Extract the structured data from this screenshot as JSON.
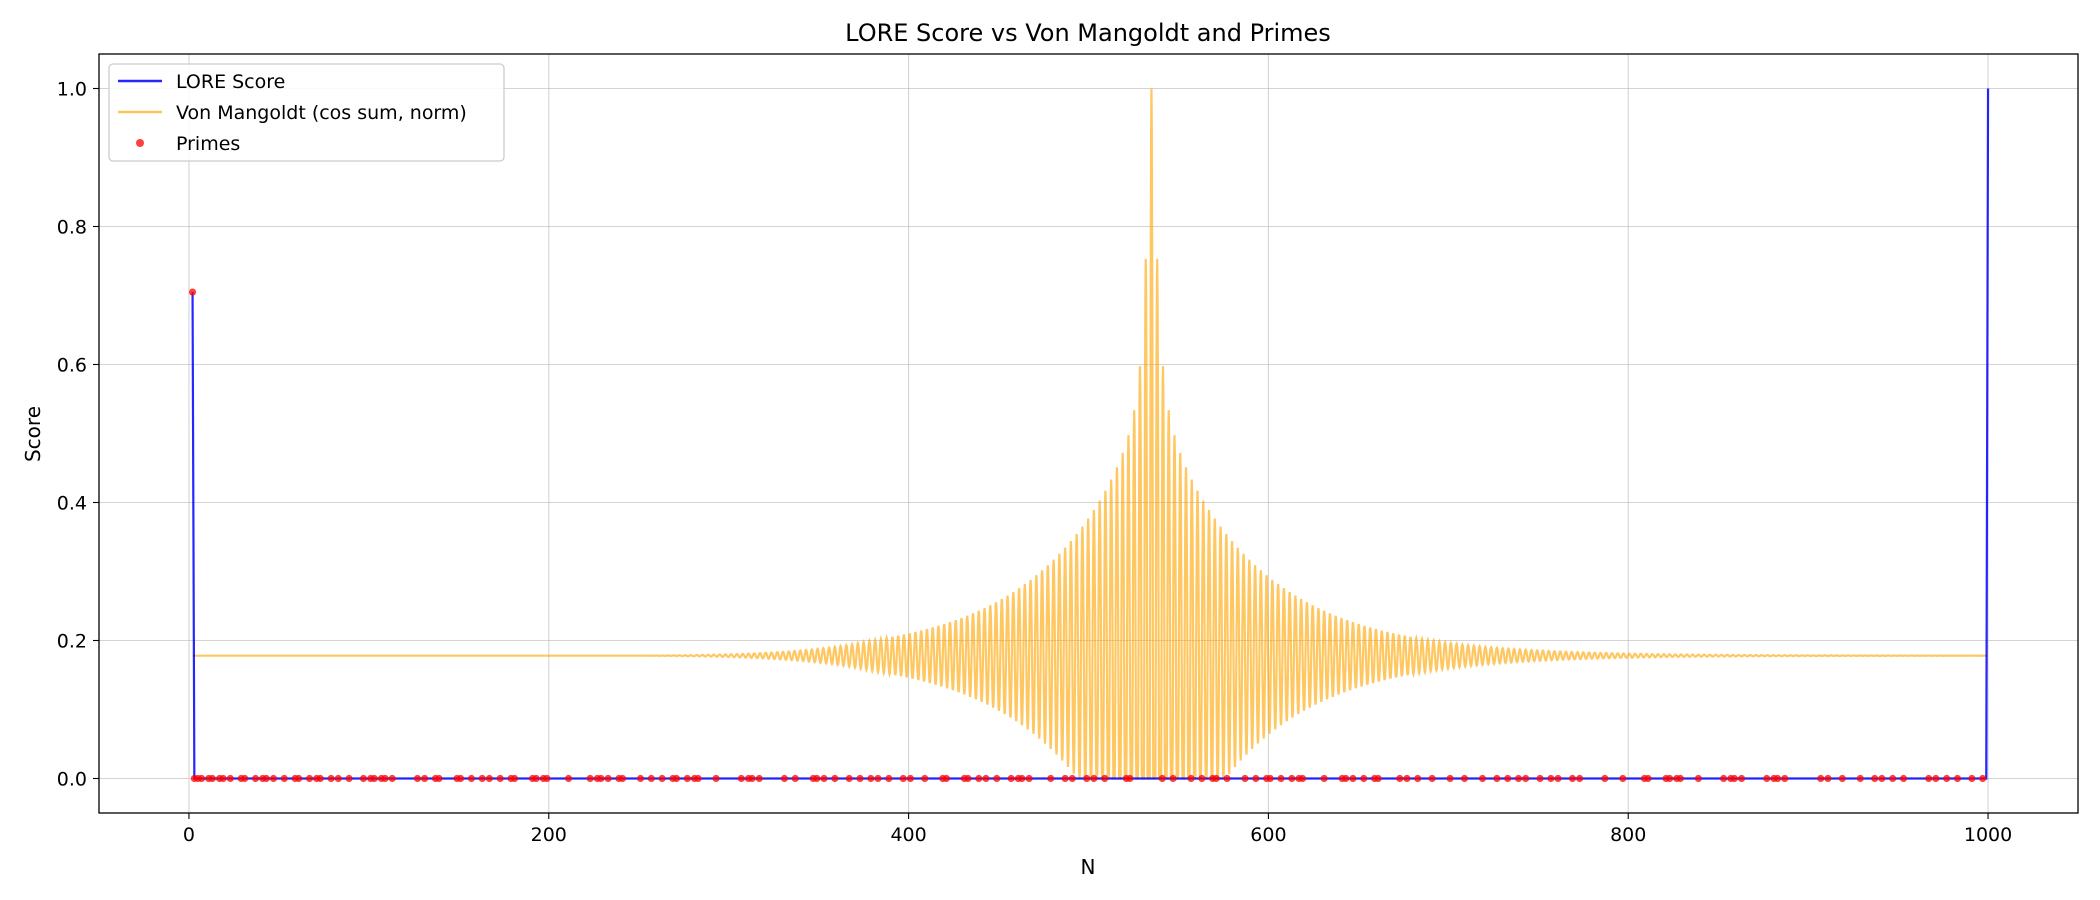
{
  "chart_data": {
    "type": "line",
    "title": "LORE Score vs Von Mangoldt and Primes",
    "xlabel": "N",
    "ylabel": "Score",
    "xlim": [
      -50,
      1050
    ],
    "ylim": [
      -0.05,
      1.05
    ],
    "xticks": [
      0,
      200,
      400,
      600,
      800,
      1000
    ],
    "yticks": [
      0.0,
      0.2,
      0.4,
      0.6,
      0.8,
      1.0
    ],
    "x_tick_labels": [
      "0",
      "200",
      "400",
      "600",
      "800",
      "1000"
    ],
    "y_tick_labels": [
      "0.0",
      "0.2",
      "0.4",
      "0.6",
      "0.8",
      "1.0"
    ],
    "grid": true,
    "legend_position": "top-left",
    "series": [
      {
        "name": "LORE Score",
        "kind": "line",
        "color": "#0000ff",
        "x": [
          2,
          3,
          999,
          1000
        ],
        "y": [
          0.705,
          0.0,
          0.0,
          1.0
        ]
      },
      {
        "name": "Von Mangoldt (cos sum, norm)",
        "kind": "line",
        "color": "#ffa500",
        "x_range": [
          2,
          1000
        ],
        "baseline": 0.178,
        "peak_x": 535,
        "peak_y": 1.0,
        "min_y": 0.0,
        "oscillation_period": 3.2,
        "decay_scale": 55,
        "visible_range": [
          380,
          1000
        ]
      },
      {
        "name": "Primes",
        "kind": "scatter",
        "color": "#ff0000",
        "x": [
          2,
          3,
          5,
          7,
          11,
          13,
          17,
          19,
          23,
          29,
          31,
          37,
          41,
          43,
          47,
          53,
          59,
          61,
          67,
          71,
          73,
          79,
          83,
          89,
          97,
          101,
          103,
          107,
          109,
          113,
          127,
          131,
          137,
          139,
          149,
          151,
          157,
          163,
          167,
          173,
          179,
          181,
          191,
          193,
          197,
          199,
          211,
          223,
          227,
          229,
          233,
          239,
          241,
          251,
          257,
          263,
          269,
          271,
          277,
          281,
          283,
          293,
          307,
          311,
          313,
          317,
          331,
          337,
          347,
          349,
          353,
          359,
          367,
          373,
          379,
          383,
          389,
          397,
          401,
          409,
          419,
          421,
          431,
          433,
          439,
          443,
          449,
          457,
          461,
          463,
          467,
          479,
          487,
          491,
          499,
          503,
          509,
          521,
          523,
          541,
          547,
          557,
          563,
          569,
          571,
          577,
          587,
          593,
          599,
          601,
          607,
          613,
          617,
          619,
          631,
          641,
          643,
          647,
          653,
          659,
          661,
          673,
          677,
          683,
          691,
          701,
          709,
          719,
          727,
          733,
          739,
          743,
          751,
          757,
          761,
          769,
          773,
          787,
          797,
          809,
          811,
          821,
          823,
          827,
          829,
          839,
          853,
          857,
          859,
          863,
          877,
          881,
          883,
          887,
          907,
          911,
          919,
          929,
          937,
          941,
          947,
          953,
          967,
          971,
          977,
          983,
          991,
          997
        ],
        "y_first": 0.705,
        "y_rest": 0.0
      }
    ]
  }
}
